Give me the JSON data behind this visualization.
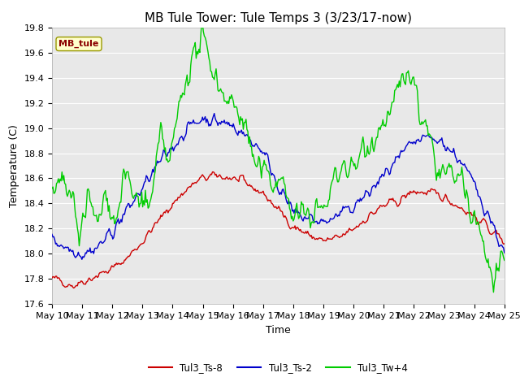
{
  "title": "MB Tule Tower: Tule Temps 3 (3/23/17-now)",
  "xlabel": "Time",
  "ylabel": "Temperature (C)",
  "ylim": [
    17.6,
    19.8
  ],
  "yticks": [
    17.6,
    17.8,
    18.0,
    18.2,
    18.4,
    18.6,
    18.8,
    19.0,
    19.2,
    19.4,
    19.6,
    19.8
  ],
  "xtick_labels": [
    "May 10",
    "May 11",
    "May 12",
    "May 13",
    "May 14",
    "May 15",
    "May 16",
    "May 17",
    "May 18",
    "May 19",
    "May 20",
    "May 21",
    "May 22",
    "May 23",
    "May 24",
    "May 25"
  ],
  "color_red": "#cc0000",
  "color_blue": "#0000cc",
  "color_green": "#00cc00",
  "fig_bg": "#ffffff",
  "plot_bg": "#e8e8e8",
  "legend_label": "MB_tule",
  "series_labels": [
    "Tul3_Ts-8",
    "Tul3_Ts-2",
    "Tul3_Tw+4"
  ],
  "title_fontsize": 11,
  "axis_fontsize": 9,
  "tick_fontsize": 8,
  "grid_color": "#ffffff",
  "line_width": 1.0
}
